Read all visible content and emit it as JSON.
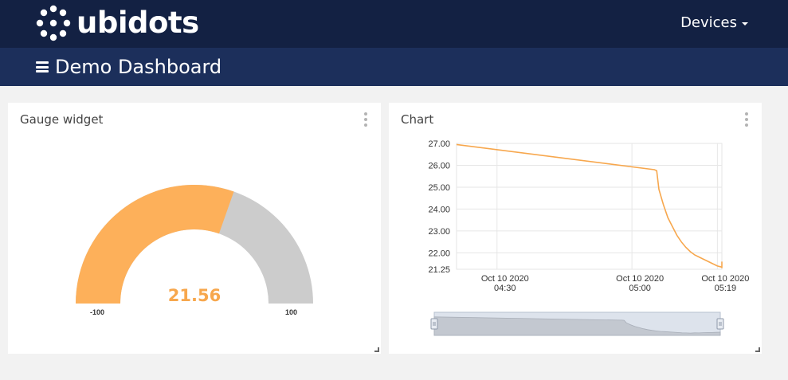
{
  "header": {
    "logo_text": "ubidots",
    "devices_label": "Devices",
    "brand_color": "#132143"
  },
  "subheader": {
    "title": "Demo Dashboard",
    "color": "#1c2f5b"
  },
  "gauge_widget": {
    "title": "Gauge widget",
    "value": 21.56,
    "value_label": "21.56",
    "min": -100,
    "max": 100,
    "min_label": "-100",
    "max_label": "100",
    "fill_color": "#fdb05a",
    "track_color": "#cccccc"
  },
  "chart_widget": {
    "title": "Chart",
    "line_color": "#f7a74d"
  },
  "chart_data": {
    "type": "line",
    "y_ticks": [
      "27.00",
      "26.00",
      "25.00",
      "24.00",
      "23.00",
      "22.00",
      "21.25"
    ],
    "x_ticks": [
      {
        "line1": "Oct 10 2020",
        "line2": "04:30"
      },
      {
        "line1": "Oct 10 2020",
        "line2": "05:00"
      },
      {
        "line1": "Oct 10 2020",
        "line2": "05:19"
      }
    ],
    "ylim": [
      21.25,
      27.0
    ],
    "xlim_minutes_after_0400": [
      21,
      80
    ],
    "grid": true,
    "series": [
      {
        "points": [
          [
            21,
            26.95
          ],
          [
            65,
            25.8
          ],
          [
            65.5,
            25.75
          ],
          [
            66,
            24.9
          ],
          [
            67,
            24.2
          ],
          [
            68,
            23.6
          ],
          [
            69,
            23.2
          ],
          [
            70,
            22.8
          ],
          [
            71,
            22.5
          ],
          [
            72,
            22.25
          ],
          [
            73,
            22.05
          ],
          [
            74,
            21.9
          ],
          [
            75,
            21.8
          ],
          [
            76,
            21.7
          ],
          [
            77,
            21.6
          ],
          [
            78,
            21.5
          ],
          [
            79,
            21.4
          ],
          [
            80,
            21.35
          ],
          [
            81,
            21.3
          ],
          [
            82,
            21.4
          ],
          [
            83,
            21.35
          ],
          [
            84,
            21.45
          ],
          [
            85,
            21.5
          ],
          [
            86,
            21.5
          ],
          [
            87,
            21.55
          ],
          [
            88,
            21.6
          ]
        ]
      }
    ]
  }
}
